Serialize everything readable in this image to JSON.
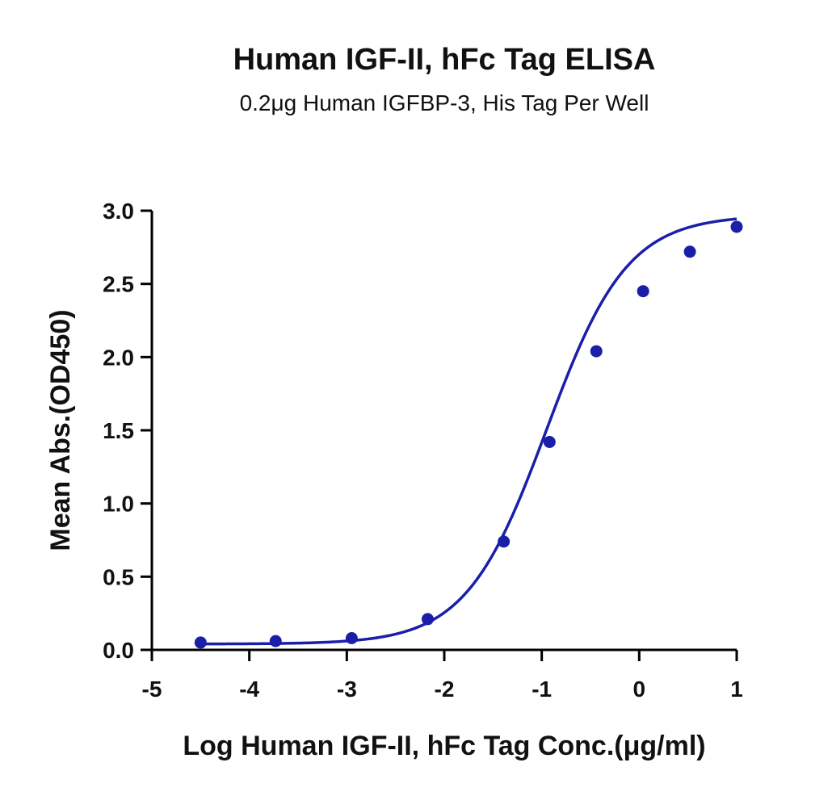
{
  "chart_data": {
    "type": "scatter",
    "title": "Human IGF-II, hFc Tag ELISA",
    "subtitle": "0.2μg Human IGFBP-3, His Tag Per Well",
    "xlabel": "Log Human IGF-II, hFc Tag Conc.(μg/ml)",
    "ylabel": "Mean Abs.(OD450)",
    "xlim": [
      -5,
      1
    ],
    "ylim": [
      0,
      3.0
    ],
    "x_ticks": [
      "-5",
      "-4",
      "-3",
      "-2",
      "-1",
      "0",
      "1"
    ],
    "x_tick_values": [
      -5,
      -4,
      -3,
      -2,
      -1,
      0,
      1
    ],
    "y_ticks": [
      "0.0",
      "0.5",
      "1.0",
      "1.5",
      "2.0",
      "2.5",
      "3.0"
    ],
    "y_tick_values": [
      0,
      0.5,
      1.0,
      1.5,
      2.0,
      2.5,
      3.0
    ],
    "grid": false,
    "legend": "none",
    "series": [
      {
        "x": [
          -4.5,
          -3.73,
          -2.95,
          -2.17,
          -1.39,
          -0.92,
          -0.44,
          0.04,
          0.52,
          1.0
        ],
        "y": [
          0.05,
          0.06,
          0.08,
          0.21,
          0.74,
          1.42,
          2.04,
          2.45,
          2.72,
          2.89
        ],
        "color": "#1b1fa8",
        "marker": "circle",
        "fit": {
          "model": "4PL",
          "bottom": 0.04,
          "top": 2.97,
          "log_ec50": -0.95,
          "hill_slope": 1.05
        }
      }
    ]
  }
}
